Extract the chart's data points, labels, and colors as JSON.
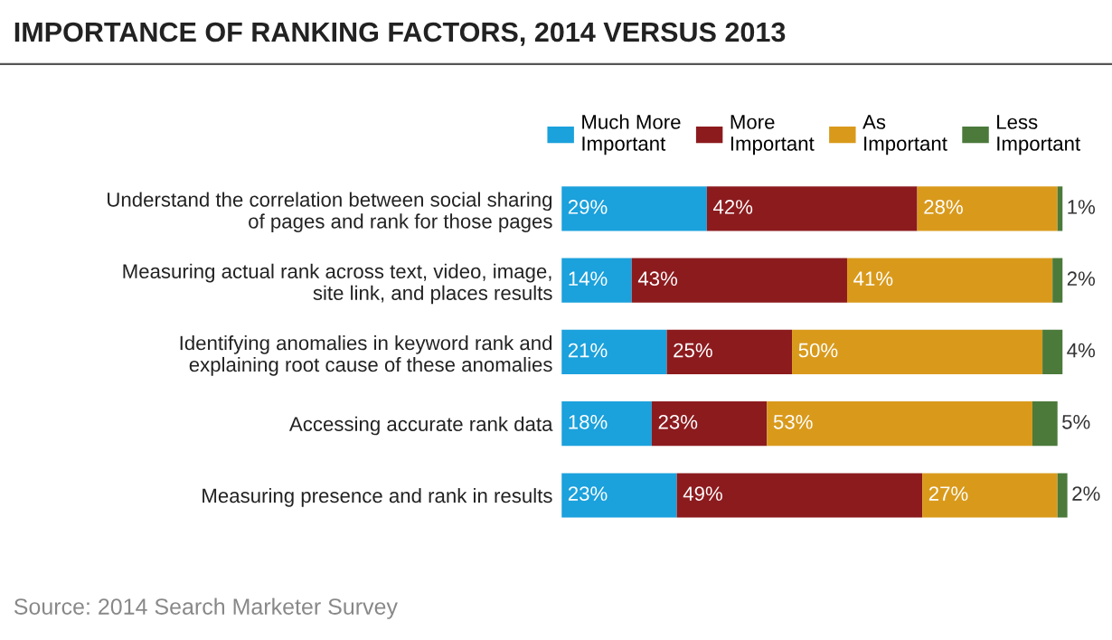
{
  "chart_data": {
    "type": "bar",
    "orientation": "horizontal",
    "stacked": true,
    "title": "IMPORTANCE OF RANKING FACTORS, 2014 VERSUS 2013",
    "categories": [
      "Understand the correlation between social sharing\nof pages and rank for those pages",
      "Measuring actual rank across text, video, image,\nsite link, and places results",
      "Identifying anomalies in keyword rank and\nexplaining root cause of these anomalies",
      "Accessing accurate rank data",
      "Measuring presence and rank in results"
    ],
    "series": [
      {
        "name": "Much More\nImportant",
        "color": "#1ba1dc",
        "values": [
          29,
          14,
          21,
          18,
          23
        ],
        "value_labels": [
          "29%",
          "14%",
          "21%",
          "18%",
          "23%"
        ]
      },
      {
        "name": "More\nImportant",
        "color": "#8c1b1e",
        "values": [
          42,
          43,
          25,
          23,
          49
        ],
        "value_labels": [
          "42%",
          "43%",
          "25%",
          "23%",
          "49%"
        ]
      },
      {
        "name": "As\nImportant",
        "color": "#d99a1c",
        "values": [
          28,
          41,
          50,
          53,
          27
        ],
        "value_labels": [
          "28%",
          "41%",
          "50%",
          "53%",
          "27%"
        ]
      },
      {
        "name": "Less\nImportant",
        "color": "#4b7a3b",
        "values": [
          1,
          2,
          4,
          5,
          2
        ],
        "value_labels": [
          "1%",
          "2%",
          "4%",
          "5%",
          "2%"
        ]
      }
    ],
    "xlim": [
      0,
      101
    ],
    "tick_labels": false,
    "legend": "top",
    "grid": false,
    "annotations": [
      "Source: 2014 Search Marketer Survey"
    ]
  }
}
